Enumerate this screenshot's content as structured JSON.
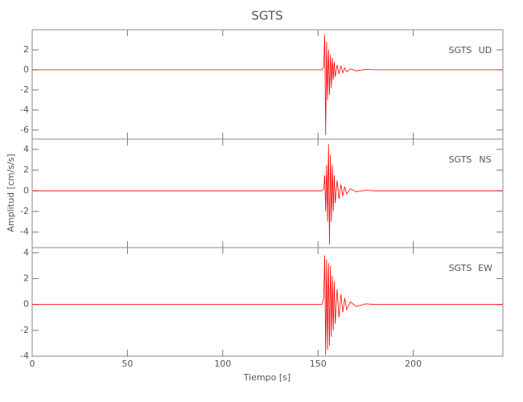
{
  "chart_data": {
    "type": "line",
    "title": "SGTS",
    "xlabel": "Tiempo [s]",
    "ylabel": "Amplitud [cm/s/s]",
    "x": [
      0,
      20,
      40,
      60,
      80,
      100,
      120,
      140,
      150,
      152,
      153,
      153.5,
      154,
      154.5,
      155,
      155.5,
      156,
      156.5,
      157,
      157.5,
      158,
      158.5,
      159,
      160,
      161,
      162,
      163,
      164,
      165,
      167,
      170,
      175,
      180,
      190,
      200,
      220,
      247
    ],
    "xlim": [
      0,
      247
    ],
    "xticks": [
      0,
      50,
      100,
      150,
      200
    ],
    "panels": [
      {
        "station": "SGTS",
        "component": "UD",
        "ylim": [
          -6.9,
          4
        ],
        "yticks": [
          -6,
          -4,
          -2,
          0,
          2
        ],
        "series": [
          {
            "color": "#ff0000",
            "values": [
              0,
              0,
              0,
              0,
              0,
              0,
              0,
              0,
              0,
              0,
              0.3,
              3.5,
              -6.5,
              2.8,
              -3,
              2,
              -2.5,
              1.5,
              -1.8,
              1.2,
              -1,
              0.8,
              -0.7,
              0.5,
              -0.4,
              0.4,
              -0.3,
              0.2,
              -0.2,
              0.1,
              -0.1,
              0.05,
              0,
              0,
              0,
              0,
              0
            ]
          }
        ]
      },
      {
        "station": "SGTS",
        "component": "NS",
        "ylim": [
          -5.5,
          5
        ],
        "yticks": [
          -4,
          -2,
          0,
          2,
          4
        ],
        "series": [
          {
            "color": "#ff0000",
            "values": [
              0,
              0,
              0,
              0,
              0,
              0,
              0,
              0,
              0,
              0,
              0.2,
              1.5,
              -2,
              2.5,
              -3,
              4.5,
              -5.2,
              3.5,
              -3,
              2.5,
              -2,
              1.5,
              -1.2,
              1,
              -0.8,
              0.6,
              -0.5,
              0.4,
              -0.3,
              0.2,
              -0.1,
              0.05,
              0,
              0,
              0,
              0,
              0
            ]
          }
        ]
      },
      {
        "station": "SGTS",
        "component": "EW",
        "ylim": [
          -4,
          4.4
        ],
        "yticks": [
          -4,
          -2,
          0,
          2,
          4
        ],
        "series": [
          {
            "color": "#ff0000",
            "values": [
              0,
              0,
              0,
              0,
              0,
              0,
              0,
              0,
              0,
              0,
              0.5,
              3.8,
              -3.9,
              3.5,
              -3.5,
              3.2,
              -3.2,
              3,
              -2.5,
              2.2,
              -2,
              1.8,
              -1.5,
              1.2,
              -1,
              0.8,
              -0.6,
              0.5,
              -0.4,
              0.2,
              -0.15,
              0.05,
              0,
              0,
              0,
              0,
              0
            ]
          }
        ]
      }
    ]
  }
}
